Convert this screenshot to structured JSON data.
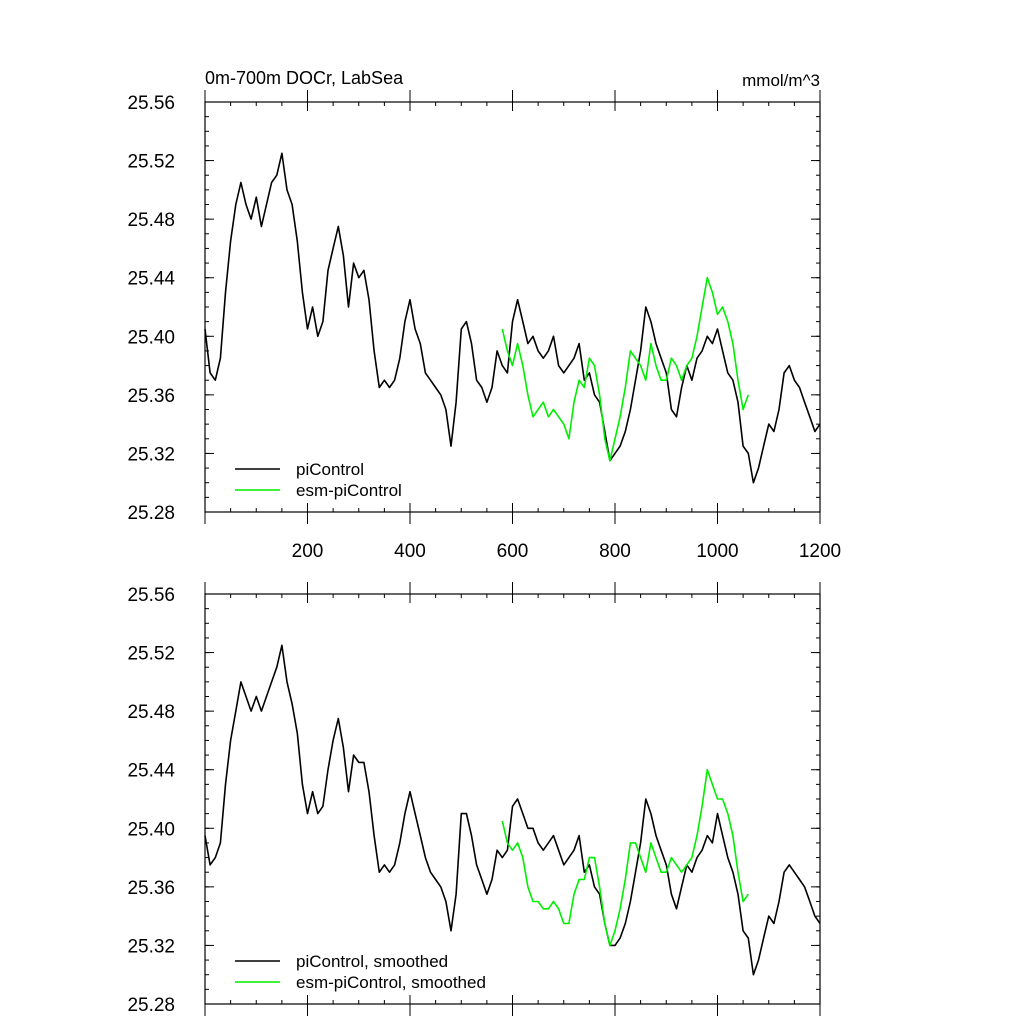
{
  "colors": {
    "piControl": "#000000",
    "esm_piControl": "#00ee00"
  },
  "chart_data": [
    {
      "type": "line",
      "title": "0m-700m DOCr, LabSea",
      "units": "mmol/m^3",
      "xlim": [
        0,
        1200
      ],
      "ylim": [
        25.28,
        25.56
      ],
      "x_ticks": [
        "200",
        "400",
        "600",
        "800",
        "1000",
        "1200"
      ],
      "y_ticks": [
        "25.28",
        "25.32",
        "25.36",
        "25.40",
        "25.44",
        "25.48",
        "25.52",
        "25.56"
      ],
      "legend_position": "bottom-left",
      "series": [
        {
          "name": "piControl",
          "x": [
            0,
            10,
            20,
            30,
            40,
            50,
            60,
            70,
            80,
            90,
            100,
            110,
            120,
            130,
            140,
            150,
            160,
            170,
            180,
            190,
            200,
            210,
            220,
            230,
            240,
            250,
            260,
            270,
            280,
            290,
            300,
            310,
            320,
            330,
            340,
            350,
            360,
            370,
            380,
            390,
            400,
            410,
            420,
            430,
            440,
            450,
            460,
            470,
            480,
            490,
            500,
            510,
            520,
            530,
            540,
            550,
            560,
            570,
            580,
            590,
            600,
            610,
            620,
            630,
            640,
            650,
            660,
            670,
            680,
            690,
            700,
            710,
            720,
            730,
            740,
            750,
            760,
            770,
            780,
            790,
            800,
            810,
            820,
            830,
            840,
            850,
            860,
            870,
            880,
            890,
            900,
            910,
            920,
            930,
            940,
            950,
            960,
            970,
            980,
            990,
            1000,
            1010,
            1020,
            1030,
            1040,
            1050,
            1060,
            1070,
            1080,
            1090,
            1100,
            1110,
            1120,
            1130,
            1140,
            1150,
            1160,
            1170,
            1180,
            1190,
            1200
          ],
          "values": [
            25.405,
            25.375,
            25.37,
            25.385,
            25.43,
            25.465,
            25.49,
            25.505,
            25.49,
            25.48,
            25.495,
            25.475,
            25.49,
            25.505,
            25.51,
            25.525,
            25.5,
            25.49,
            25.465,
            25.43,
            25.405,
            25.42,
            25.4,
            25.41,
            25.445,
            25.46,
            25.475,
            25.455,
            25.42,
            25.45,
            25.44,
            25.445,
            25.425,
            25.39,
            25.365,
            25.37,
            25.365,
            25.37,
            25.385,
            25.41,
            25.425,
            25.405,
            25.395,
            25.375,
            25.37,
            25.365,
            25.36,
            25.35,
            25.325,
            25.355,
            25.405,
            25.41,
            25.395,
            25.37,
            25.365,
            25.355,
            25.365,
            25.39,
            25.38,
            25.375,
            25.41,
            25.425,
            25.41,
            25.395,
            25.4,
            25.39,
            25.385,
            25.39,
            25.4,
            25.38,
            25.375,
            25.38,
            25.385,
            25.395,
            25.37,
            25.375,
            25.36,
            25.355,
            25.335,
            25.315,
            25.32,
            25.325,
            25.335,
            25.35,
            25.37,
            25.39,
            25.42,
            25.41,
            25.395,
            25.385,
            25.375,
            25.35,
            25.345,
            25.365,
            25.38,
            25.37,
            25.385,
            25.39,
            25.4,
            25.395,
            25.405,
            25.39,
            25.375,
            25.37,
            25.355,
            25.325,
            25.32,
            25.3,
            25.31,
            25.325,
            25.34,
            25.335,
            25.35,
            25.375,
            25.38,
            25.37,
            25.365,
            25.355,
            25.345,
            25.335,
            25.34
          ]
        },
        {
          "name": "esm-piControl",
          "x": [
            580,
            590,
            600,
            610,
            620,
            630,
            640,
            650,
            660,
            670,
            680,
            690,
            700,
            710,
            720,
            730,
            740,
            750,
            760,
            770,
            780,
            790,
            800,
            810,
            820,
            830,
            840,
            850,
            860,
            870,
            880,
            890,
            900,
            910,
            920,
            930,
            940,
            950,
            960,
            970,
            980,
            990,
            1000,
            1010,
            1020,
            1030,
            1040,
            1050,
            1060
          ],
          "values": [
            25.405,
            25.39,
            25.38,
            25.395,
            25.38,
            25.36,
            25.345,
            25.35,
            25.355,
            25.345,
            25.35,
            25.345,
            25.34,
            25.33,
            25.355,
            25.37,
            25.365,
            25.385,
            25.38,
            25.36,
            25.33,
            25.315,
            25.33,
            25.345,
            25.365,
            25.39,
            25.385,
            25.38,
            25.37,
            25.395,
            25.38,
            25.37,
            25.37,
            25.385,
            25.38,
            25.37,
            25.38,
            25.385,
            25.4,
            25.42,
            25.44,
            25.43,
            25.415,
            25.42,
            25.41,
            25.395,
            25.37,
            25.35,
            25.36
          ]
        }
      ]
    },
    {
      "type": "line",
      "xlim": [
        0,
        1200
      ],
      "ylim": [
        25.28,
        25.56
      ],
      "y_ticks": [
        "25.28",
        "25.32",
        "25.36",
        "25.40",
        "25.44",
        "25.48",
        "25.52",
        "25.56"
      ],
      "legend_position": "bottom-left",
      "series": [
        {
          "name": "piControl, smoothed",
          "x": [
            0,
            10,
            20,
            30,
            40,
            50,
            60,
            70,
            80,
            90,
            100,
            110,
            120,
            130,
            140,
            150,
            160,
            170,
            180,
            190,
            200,
            210,
            220,
            230,
            240,
            250,
            260,
            270,
            280,
            290,
            300,
            310,
            320,
            330,
            340,
            350,
            360,
            370,
            380,
            390,
            400,
            410,
            420,
            430,
            440,
            450,
            460,
            470,
            480,
            490,
            500,
            510,
            520,
            530,
            540,
            550,
            560,
            570,
            580,
            590,
            600,
            610,
            620,
            630,
            640,
            650,
            660,
            670,
            680,
            690,
            700,
            710,
            720,
            730,
            740,
            750,
            760,
            770,
            780,
            790,
            800,
            810,
            820,
            830,
            840,
            850,
            860,
            870,
            880,
            890,
            900,
            910,
            920,
            930,
            940,
            950,
            960,
            970,
            980,
            990,
            1000,
            1010,
            1020,
            1030,
            1040,
            1050,
            1060,
            1070,
            1080,
            1090,
            1100,
            1110,
            1120,
            1130,
            1140,
            1150,
            1160,
            1170,
            1180,
            1190,
            1200
          ],
          "values": [
            25.395,
            25.375,
            25.38,
            25.39,
            25.43,
            25.46,
            25.48,
            25.5,
            25.49,
            25.48,
            25.49,
            25.48,
            25.49,
            25.5,
            25.51,
            25.525,
            25.5,
            25.485,
            25.465,
            25.43,
            25.41,
            25.425,
            25.41,
            25.415,
            25.44,
            25.46,
            25.475,
            25.455,
            25.425,
            25.45,
            25.445,
            25.445,
            25.425,
            25.395,
            25.37,
            25.375,
            25.37,
            25.375,
            25.39,
            25.41,
            25.425,
            25.41,
            25.395,
            25.38,
            25.37,
            25.365,
            25.36,
            25.35,
            25.33,
            25.355,
            25.41,
            25.41,
            25.395,
            25.375,
            25.365,
            25.355,
            25.365,
            25.385,
            25.38,
            25.385,
            25.415,
            25.42,
            25.41,
            25.4,
            25.4,
            25.39,
            25.385,
            25.39,
            25.395,
            25.385,
            25.375,
            25.38,
            25.385,
            25.395,
            25.37,
            25.375,
            25.36,
            25.355,
            25.335,
            25.32,
            25.32,
            25.325,
            25.335,
            25.35,
            25.37,
            25.39,
            25.42,
            25.41,
            25.395,
            25.385,
            25.375,
            25.355,
            25.345,
            25.36,
            25.375,
            25.37,
            25.38,
            25.385,
            25.395,
            25.39,
            25.41,
            25.395,
            25.38,
            25.37,
            25.355,
            25.33,
            25.325,
            25.3,
            25.31,
            25.325,
            25.34,
            25.335,
            25.35,
            25.37,
            25.375,
            25.37,
            25.365,
            25.36,
            25.35,
            25.34,
            25.335
          ]
        },
        {
          "name": "esm-piControl, smoothed",
          "x": [
            580,
            590,
            600,
            610,
            620,
            630,
            640,
            650,
            660,
            670,
            680,
            690,
            700,
            710,
            720,
            730,
            740,
            750,
            760,
            770,
            780,
            790,
            800,
            810,
            820,
            830,
            840,
            850,
            860,
            870,
            880,
            890,
            900,
            910,
            920,
            930,
            940,
            950,
            960,
            970,
            980,
            990,
            1000,
            1010,
            1020,
            1030,
            1040,
            1050,
            1060
          ],
          "values": [
            25.405,
            25.39,
            25.385,
            25.39,
            25.38,
            25.36,
            25.35,
            25.35,
            25.345,
            25.345,
            25.35,
            25.345,
            25.335,
            25.335,
            25.355,
            25.365,
            25.365,
            25.38,
            25.38,
            25.36,
            25.335,
            25.32,
            25.33,
            25.345,
            25.365,
            25.39,
            25.39,
            25.38,
            25.37,
            25.39,
            25.38,
            25.37,
            25.37,
            25.38,
            25.375,
            25.37,
            25.375,
            25.38,
            25.395,
            25.415,
            25.44,
            25.43,
            25.42,
            25.42,
            25.41,
            25.395,
            25.37,
            25.35,
            25.355
          ]
        }
      ]
    }
  ]
}
